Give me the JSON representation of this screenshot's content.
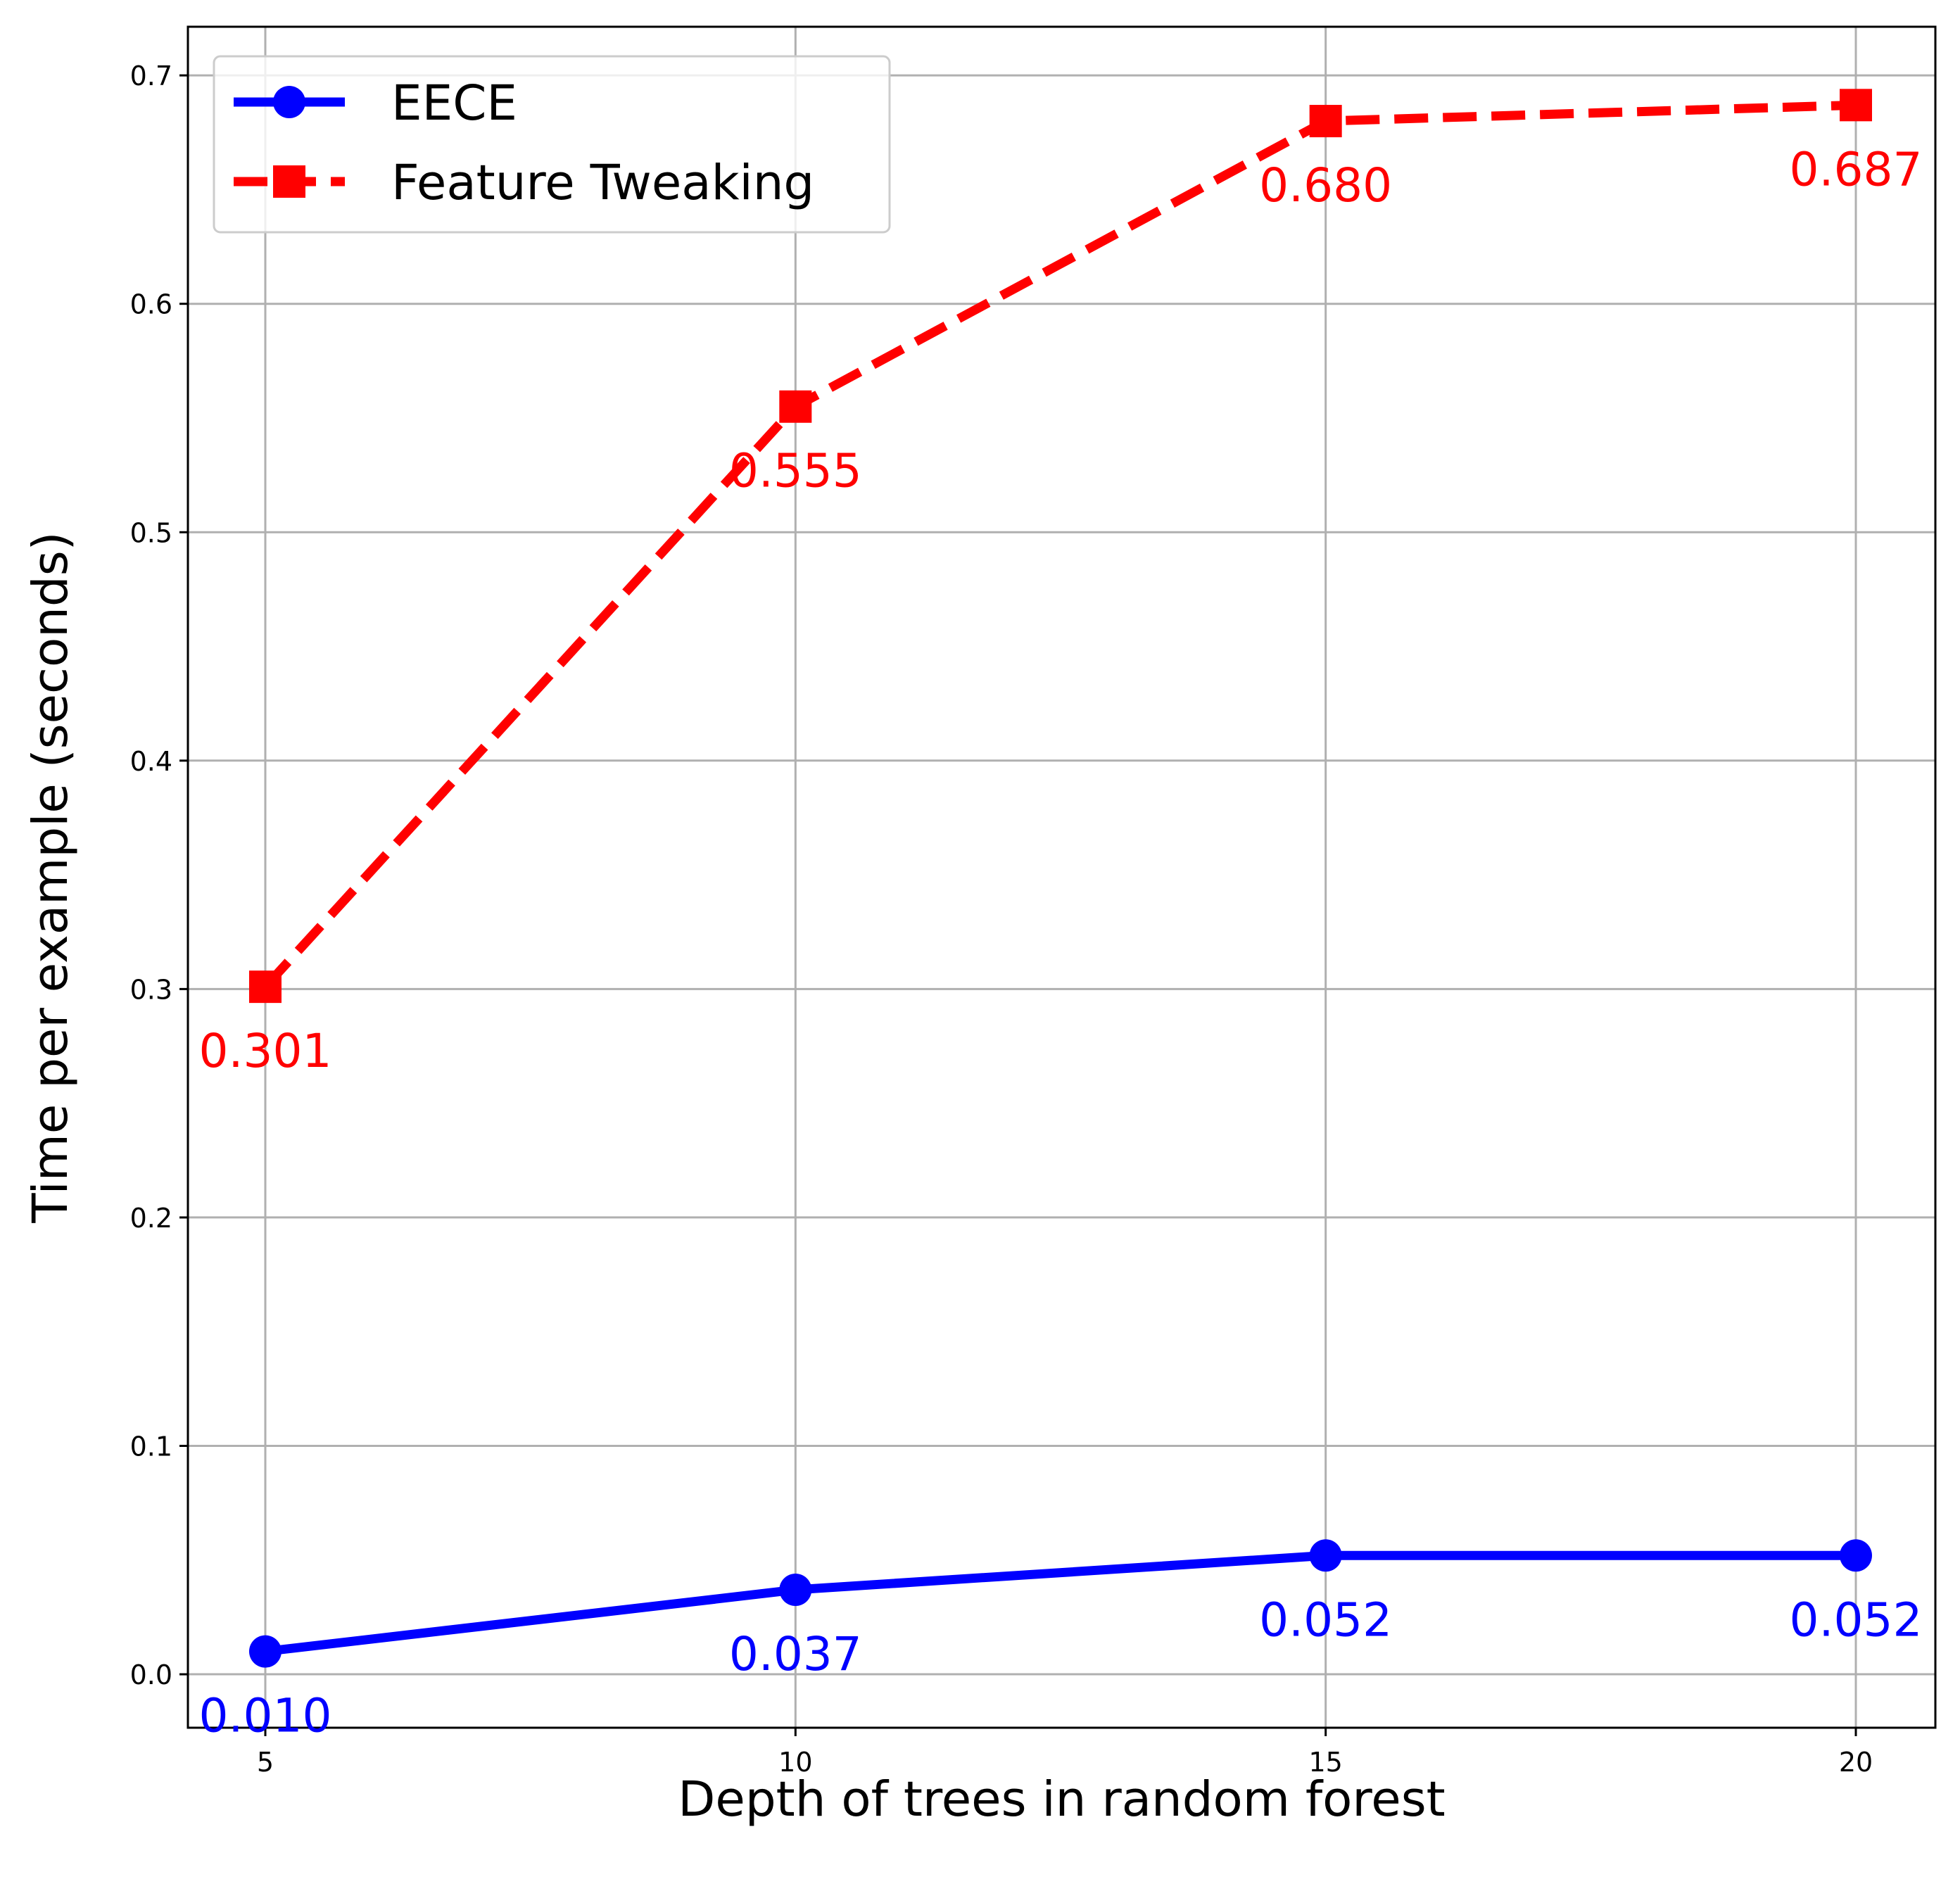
{
  "chart_data": {
    "type": "line",
    "title": "",
    "xlabel": "Depth of trees in random forest",
    "ylabel": "Time per example (seconds)",
    "x": [
      5,
      10,
      15,
      20
    ],
    "xticks": [
      5,
      10,
      15,
      20
    ],
    "xlim": [
      4.27,
      20.75
    ],
    "ylim": [
      -0.0234,
      0.7213
    ],
    "yticks": [
      "0.0",
      "0.1",
      "0.2",
      "0.3",
      "0.4",
      "0.5",
      "0.6",
      "0.7"
    ],
    "grid": true,
    "legend_position": "top-left",
    "series": [
      {
        "name": "EECE",
        "color": "#0000ff",
        "linestyle": "solid",
        "marker": "circle",
        "values": [
          0.01,
          0.037,
          0.052,
          0.052
        ],
        "labels": [
          "0.010",
          "0.037",
          "0.052",
          "0.052"
        ]
      },
      {
        "name": "Feature Tweaking",
        "color": "#ff0000",
        "linestyle": "dashed",
        "marker": "square",
        "values": [
          0.301,
          0.555,
          0.68,
          0.687
        ],
        "labels": [
          "0.301",
          "0.555",
          "0.680",
          "0.687"
        ]
      }
    ]
  }
}
